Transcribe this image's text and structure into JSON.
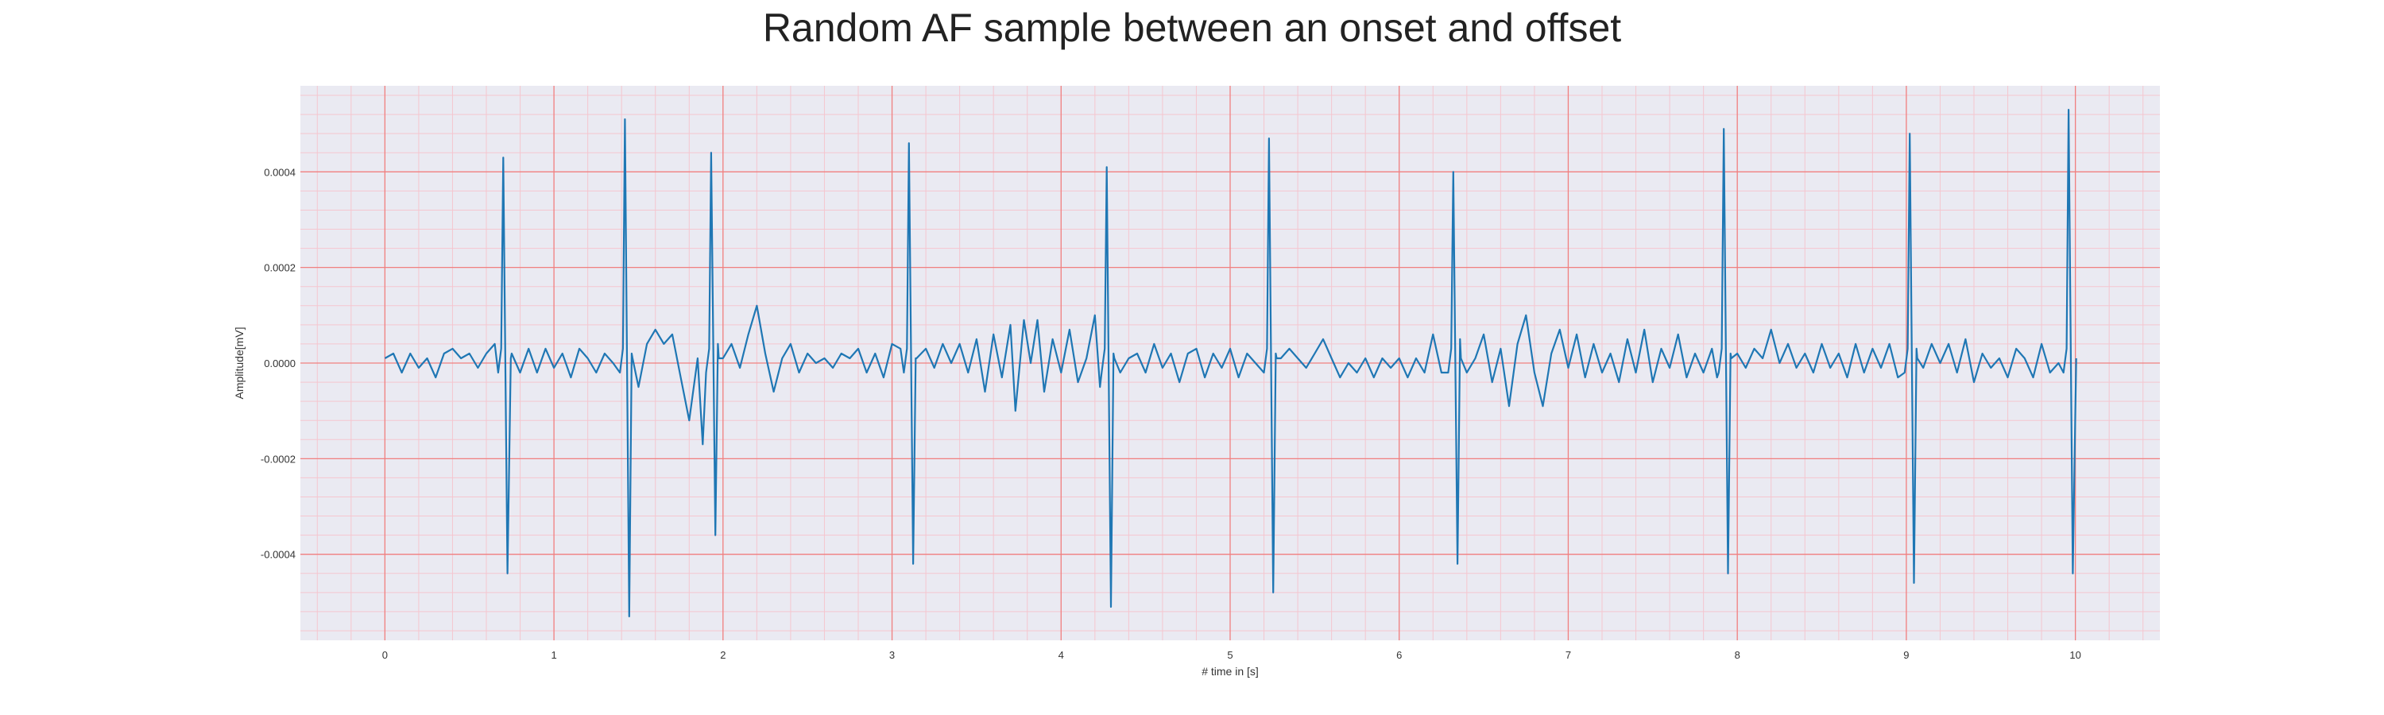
{
  "chart_data": {
    "type": "line",
    "title": "Random AF sample between an onset and offset",
    "xlabel": "# time in [s]",
    "ylabel": "Amplitude[mV]",
    "xlim": [
      -0.5,
      10.5
    ],
    "ylim": [
      -0.00058,
      0.00058
    ],
    "x_ticks": [
      0,
      1,
      2,
      3,
      4,
      5,
      6,
      7,
      8,
      9,
      10
    ],
    "x_tick_labels": [
      "0",
      "1",
      "2",
      "3",
      "4",
      "5",
      "6",
      "7",
      "8",
      "9",
      "10"
    ],
    "y_ticks": [
      -0.0004,
      -0.0002,
      0.0,
      0.0002,
      0.0004
    ],
    "y_tick_labels": [
      "-0.0004",
      "-0.0002",
      "0.0000",
      "0.0002",
      "0.0004"
    ],
    "grid": true,
    "minor_grid": true,
    "colors": {
      "line": "#1f77b4",
      "plot_background": "#eaeaf2",
      "major_grid": "#f08080",
      "minor_grid": "#f5c6cf"
    },
    "series": [
      {
        "beats": [
          {
            "t": 0.7,
            "peak": 0.00043,
            "trough": -0.00044
          },
          {
            "t": 1.42,
            "peak": 0.00051,
            "trough": -0.00053
          },
          {
            "t": 1.93,
            "peak": 0.00044,
            "trough": -0.00036
          },
          {
            "t": 3.1,
            "peak": 0.00046,
            "trough": -0.00042
          },
          {
            "t": 4.27,
            "peak": 0.00041,
            "trough": -0.00051
          },
          {
            "t": 5.23,
            "peak": 0.00047,
            "trough": -0.00048
          },
          {
            "t": 6.32,
            "peak": 0.0004,
            "trough": -0.00042
          },
          {
            "t": 7.92,
            "peak": 0.00049,
            "trough": -0.00044
          },
          {
            "t": 9.02,
            "peak": 0.00048,
            "trough": -0.00046
          },
          {
            "t": 9.96,
            "peak": 0.00053,
            "trough": -0.00044
          }
        ],
        "baseline_points": [
          [
            0.0,
            1e-05
          ],
          [
            0.05,
            2e-05
          ],
          [
            0.1,
            -2e-05
          ],
          [
            0.15,
            2e-05
          ],
          [
            0.2,
            -1e-05
          ],
          [
            0.25,
            1e-05
          ],
          [
            0.3,
            -3e-05
          ],
          [
            0.35,
            2e-05
          ],
          [
            0.4,
            3e-05
          ],
          [
            0.45,
            1e-05
          ],
          [
            0.5,
            2e-05
          ],
          [
            0.55,
            -1e-05
          ],
          [
            0.6,
            2e-05
          ],
          [
            0.65,
            4e-05
          ],
          [
            0.68,
            -4e-05
          ],
          [
            0.75,
            2e-05
          ],
          [
            0.8,
            -2e-05
          ],
          [
            0.85,
            3e-05
          ],
          [
            0.9,
            -2e-05
          ],
          [
            0.95,
            3e-05
          ],
          [
            1.0,
            -1e-05
          ],
          [
            1.05,
            2e-05
          ],
          [
            1.1,
            -3e-05
          ],
          [
            1.15,
            3e-05
          ],
          [
            1.2,
            1e-05
          ],
          [
            1.25,
            -2e-05
          ],
          [
            1.3,
            2e-05
          ],
          [
            1.35,
            0.0
          ],
          [
            1.4,
            -2e-05
          ],
          [
            1.46,
            2e-05
          ],
          [
            1.5,
            -5e-05
          ],
          [
            1.55,
            4e-05
          ],
          [
            1.6,
            7e-05
          ],
          [
            1.65,
            4e-05
          ],
          [
            1.7,
            6e-05
          ],
          [
            1.75,
            -3e-05
          ],
          [
            1.8,
            -0.00012
          ],
          [
            1.85,
            1e-05
          ],
          [
            1.88,
            -0.00017
          ],
          [
            1.97,
            4e-05
          ],
          [
            2.0,
            1e-05
          ],
          [
            2.05,
            4e-05
          ],
          [
            2.1,
            -1e-05
          ],
          [
            2.15,
            6e-05
          ],
          [
            2.2,
            0.00012
          ],
          [
            2.25,
            2e-05
          ],
          [
            2.3,
            -6e-05
          ],
          [
            2.35,
            1e-05
          ],
          [
            2.4,
            4e-05
          ],
          [
            2.45,
            -2e-05
          ],
          [
            2.5,
            2e-05
          ],
          [
            2.55,
            0.0
          ],
          [
            2.6,
            1e-05
          ],
          [
            2.65,
            -1e-05
          ],
          [
            2.7,
            2e-05
          ],
          [
            2.75,
            1e-05
          ],
          [
            2.8,
            3e-05
          ],
          [
            2.85,
            -2e-05
          ],
          [
            2.9,
            2e-05
          ],
          [
            2.95,
            -3e-05
          ],
          [
            3.0,
            4e-05
          ],
          [
            3.05,
            3e-05
          ],
          [
            3.14,
            1e-05
          ],
          [
            3.2,
            3e-05
          ],
          [
            3.25,
            -1e-05
          ],
          [
            3.3,
            4e-05
          ],
          [
            3.35,
            0.0
          ],
          [
            3.4,
            4e-05
          ],
          [
            3.45,
            -2e-05
          ],
          [
            3.5,
            5e-05
          ],
          [
            3.55,
            -6e-05
          ],
          [
            3.6,
            6e-05
          ],
          [
            3.65,
            -3e-05
          ],
          [
            3.7,
            8e-05
          ],
          [
            3.73,
            -0.0001
          ],
          [
            3.78,
            9e-05
          ],
          [
            3.82,
            0.0
          ],
          [
            3.86,
            9e-05
          ],
          [
            3.9,
            -6e-05
          ],
          [
            3.95,
            5e-05
          ],
          [
            4.0,
            -2e-05
          ],
          [
            4.05,
            7e-05
          ],
          [
            4.1,
            -4e-05
          ],
          [
            4.15,
            1e-05
          ],
          [
            4.2,
            0.0001
          ],
          [
            4.23,
            -5e-05
          ],
          [
            4.31,
            2e-05
          ],
          [
            4.35,
            -2e-05
          ],
          [
            4.4,
            1e-05
          ],
          [
            4.45,
            2e-05
          ],
          [
            4.5,
            -2e-05
          ],
          [
            4.55,
            4e-05
          ],
          [
            4.6,
            -1e-05
          ],
          [
            4.65,
            2e-05
          ],
          [
            4.7,
            -4e-05
          ],
          [
            4.75,
            2e-05
          ],
          [
            4.8,
            3e-05
          ],
          [
            4.85,
            -3e-05
          ],
          [
            4.9,
            2e-05
          ],
          [
            4.95,
            -1e-05
          ],
          [
            5.0,
            3e-05
          ],
          [
            5.05,
            -3e-05
          ],
          [
            5.1,
            2e-05
          ],
          [
            5.15,
            0.0
          ],
          [
            5.2,
            -4e-05
          ],
          [
            5.27,
            2e-05
          ],
          [
            5.3,
            1e-05
          ],
          [
            5.35,
            3e-05
          ],
          [
            5.4,
            1e-05
          ],
          [
            5.45,
            -1e-05
          ],
          [
            5.5,
            2e-05
          ],
          [
            5.55,
            5e-05
          ],
          [
            5.6,
            1e-05
          ],
          [
            5.65,
            -3e-05
          ],
          [
            5.7,
            0.0
          ],
          [
            5.75,
            -2e-05
          ],
          [
            5.8,
            1e-05
          ],
          [
            5.85,
            -3e-05
          ],
          [
            5.9,
            1e-05
          ],
          [
            5.95,
            -1e-05
          ],
          [
            6.0,
            1e-05
          ],
          [
            6.05,
            -3e-05
          ],
          [
            6.1,
            1e-05
          ],
          [
            6.15,
            -2e-05
          ],
          [
            6.2,
            6e-05
          ],
          [
            6.25,
            -2e-05
          ],
          [
            6.29,
            -0.00012
          ],
          [
            6.36,
            5e-05
          ],
          [
            6.4,
            -2e-05
          ],
          [
            6.45,
            1e-05
          ],
          [
            6.5,
            6e-05
          ],
          [
            6.55,
            -4e-05
          ],
          [
            6.6,
            3e-05
          ],
          [
            6.65,
            -9e-05
          ],
          [
            6.7,
            4e-05
          ],
          [
            6.75,
            0.0001
          ],
          [
            6.8,
            -2e-05
          ],
          [
            6.85,
            -9e-05
          ],
          [
            6.9,
            2e-05
          ],
          [
            6.95,
            7e-05
          ],
          [
            7.0,
            -1e-05
          ],
          [
            7.05,
            6e-05
          ],
          [
            7.1,
            -3e-05
          ],
          [
            7.15,
            4e-05
          ],
          [
            7.2,
            -2e-05
          ],
          [
            7.25,
            2e-05
          ],
          [
            7.3,
            -4e-05
          ],
          [
            7.35,
            5e-05
          ],
          [
            7.4,
            -2e-05
          ],
          [
            7.45,
            7e-05
          ],
          [
            7.5,
            -4e-05
          ],
          [
            7.55,
            3e-05
          ],
          [
            7.6,
            -1e-05
          ],
          [
            7.65,
            6e-05
          ],
          [
            7.7,
            -3e-05
          ],
          [
            7.75,
            2e-05
          ],
          [
            7.8,
            -2e-05
          ],
          [
            7.85,
            3e-05
          ],
          [
            7.88,
            -3e-05
          ],
          [
            7.96,
            2e-05
          ],
          [
            8.0,
            2e-05
          ],
          [
            8.05,
            -1e-05
          ],
          [
            8.1,
            3e-05
          ],
          [
            8.15,
            1e-05
          ],
          [
            8.2,
            7e-05
          ],
          [
            8.25,
            0.0
          ],
          [
            8.3,
            4e-05
          ],
          [
            8.35,
            -1e-05
          ],
          [
            8.4,
            2e-05
          ],
          [
            8.45,
            -2e-05
          ],
          [
            8.5,
            4e-05
          ],
          [
            8.55,
            -1e-05
          ],
          [
            8.6,
            2e-05
          ],
          [
            8.65,
            -3e-05
          ],
          [
            8.7,
            4e-05
          ],
          [
            8.75,
            -2e-05
          ],
          [
            8.8,
            3e-05
          ],
          [
            8.85,
            -1e-05
          ],
          [
            8.9,
            4e-05
          ],
          [
            8.95,
            -3e-05
          ],
          [
            9.06,
            3e-05
          ],
          [
            9.1,
            -1e-05
          ],
          [
            9.15,
            4e-05
          ],
          [
            9.2,
            0.0
          ],
          [
            9.25,
            4e-05
          ],
          [
            9.3,
            -2e-05
          ],
          [
            9.35,
            5e-05
          ],
          [
            9.4,
            -4e-05
          ],
          [
            9.45,
            2e-05
          ],
          [
            9.5,
            -1e-05
          ],
          [
            9.55,
            1e-05
          ],
          [
            9.6,
            -3e-05
          ],
          [
            9.65,
            3e-05
          ],
          [
            9.7,
            1e-05
          ],
          [
            9.75,
            -3e-05
          ],
          [
            9.8,
            4e-05
          ],
          [
            9.85,
            -2e-05
          ],
          [
            9.9,
            0.0
          ],
          [
            9.93,
            -8e-05
          ],
          [
            10.0,
            -0.0001
          ]
        ]
      }
    ]
  }
}
